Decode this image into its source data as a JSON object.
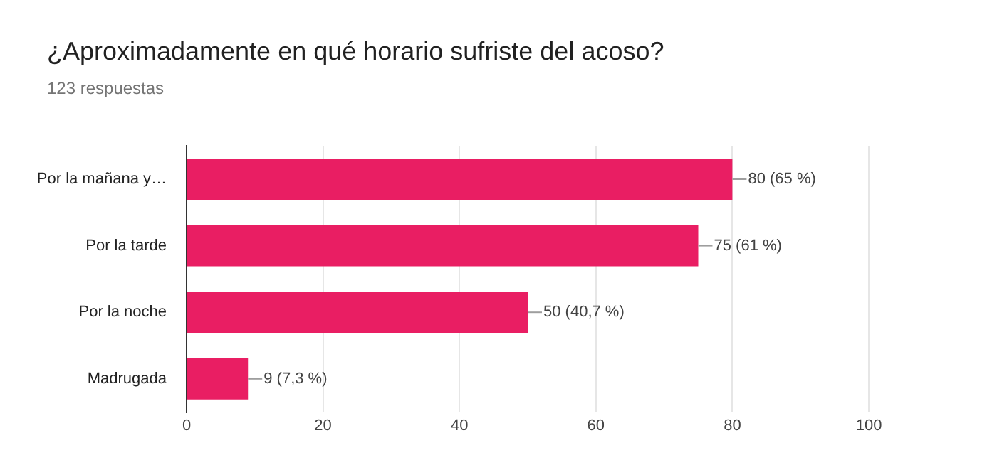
{
  "chart_data": {
    "type": "bar",
    "orientation": "horizontal",
    "title": "¿Aproximadamente en qué horario sufriste del acoso?",
    "subtitle": "123 respuestas",
    "categories": [
      "Por la mañana y…",
      "Por la tarde",
      "Por la noche",
      "Madrugada"
    ],
    "values": [
      80,
      75,
      50,
      9
    ],
    "color": "#e91e63",
    "value_labels": [
      "80 (65 %)",
      "75 (61 %)",
      "50 (40,7 %)",
      "9 (7,3 %)"
    ],
    "xlim": [
      0,
      100
    ],
    "xticks": [
      0,
      20,
      40,
      60,
      80,
      100
    ],
    "grid": "x",
    "legend": false
  }
}
